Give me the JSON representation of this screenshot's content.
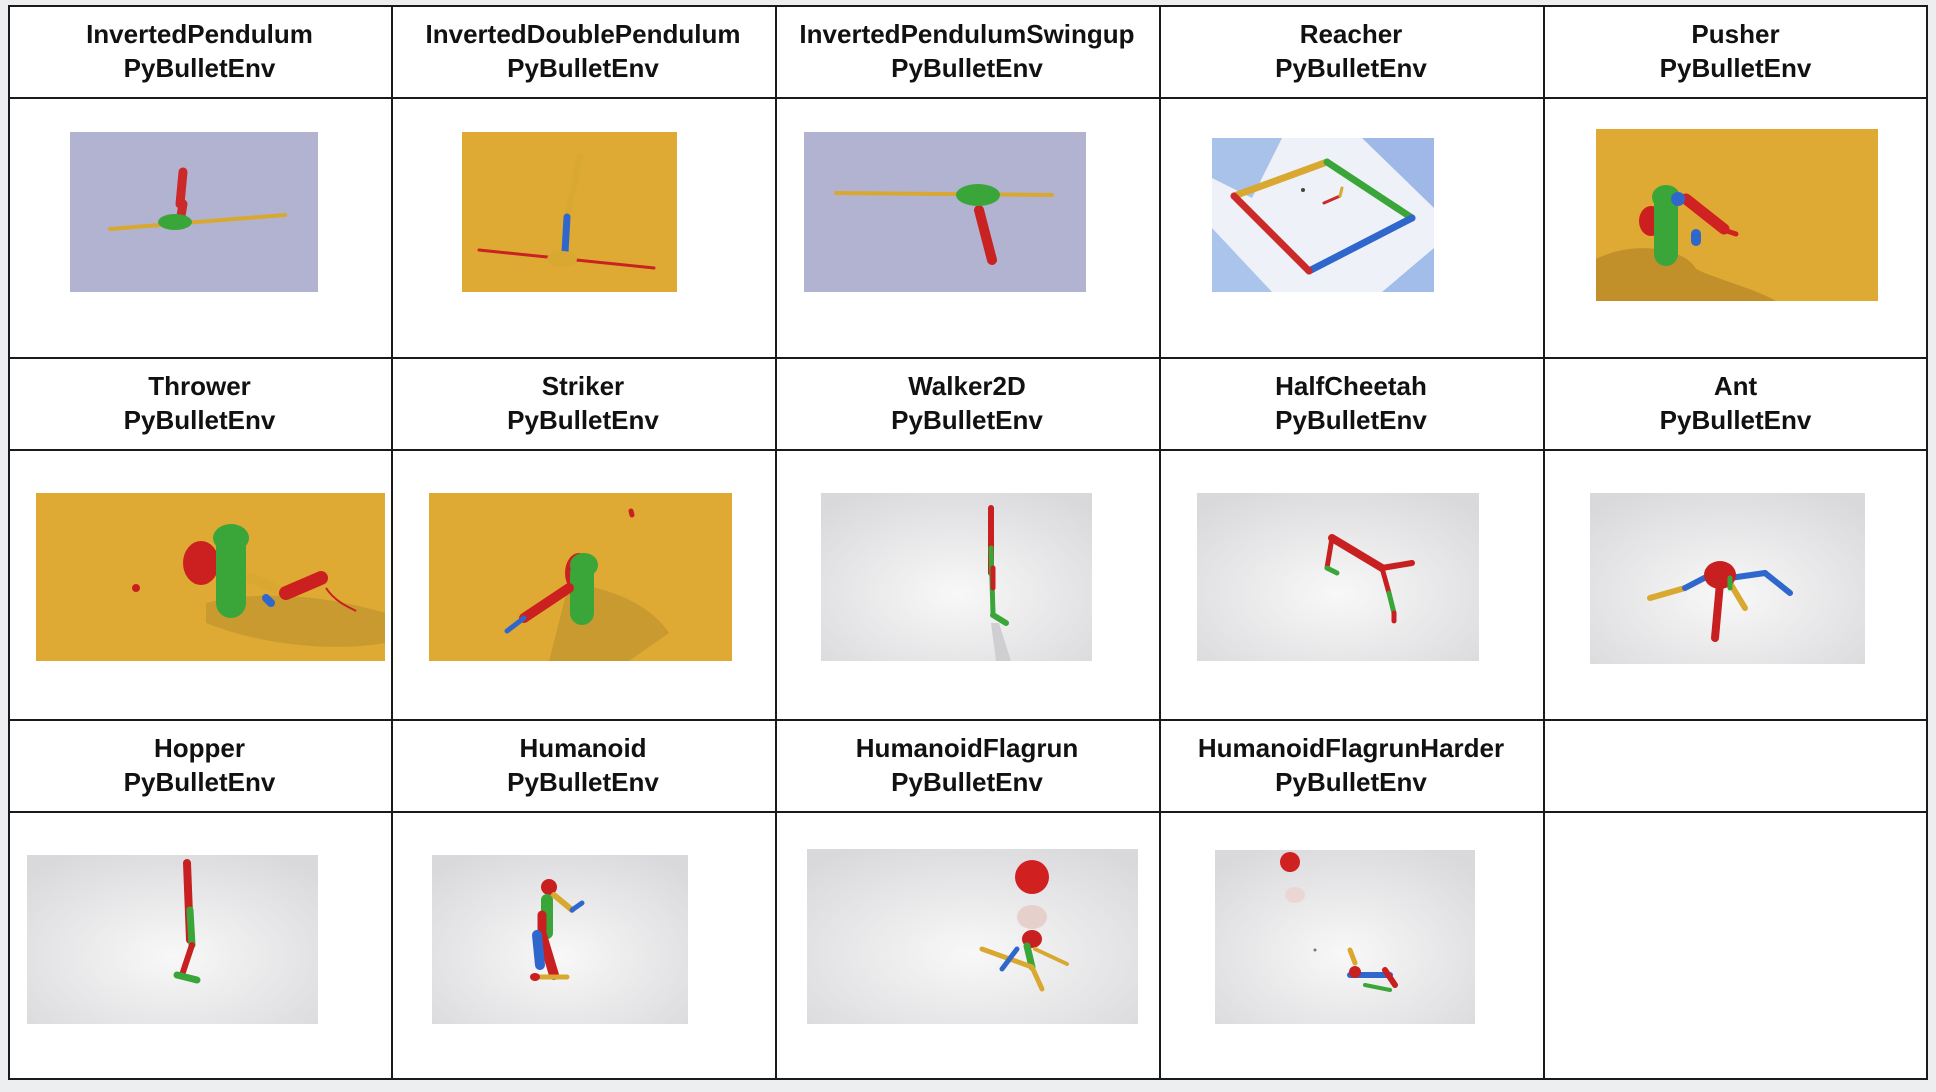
{
  "table": {
    "rows": [
      [
        {
          "name": "InvertedPendulum",
          "env": "PyBulletEnv",
          "scene": "inverted-pendulum"
        },
        {
          "name": "InvertedDoublePendulum",
          "env": "PyBulletEnv",
          "scene": "inverted-double-pendulum"
        },
        {
          "name": "InvertedPendulumSwingup",
          "env": "PyBulletEnv",
          "scene": "inverted-pendulum-swingup"
        },
        {
          "name": "Reacher",
          "env": "PyBulletEnv",
          "scene": "reacher"
        },
        {
          "name": "Pusher",
          "env": "PyBulletEnv",
          "scene": "pusher"
        }
      ],
      [
        {
          "name": "Thrower",
          "env": "PyBulletEnv",
          "scene": "thrower"
        },
        {
          "name": "Striker",
          "env": "PyBulletEnv",
          "scene": "striker"
        },
        {
          "name": "Walker2D",
          "env": "PyBulletEnv",
          "scene": "walker2d"
        },
        {
          "name": "HalfCheetah",
          "env": "PyBulletEnv",
          "scene": "halfcheetah"
        },
        {
          "name": "Ant",
          "env": "PyBulletEnv",
          "scene": "ant"
        }
      ],
      [
        {
          "name": "Hopper",
          "env": "PyBulletEnv",
          "scene": "hopper"
        },
        {
          "name": "Humanoid",
          "env": "PyBulletEnv",
          "scene": "humanoid"
        },
        {
          "name": "HumanoidFlagrun",
          "env": "PyBulletEnv",
          "scene": "humanoid-flagrun"
        },
        {
          "name": "HumanoidFlagrunHarder",
          "env": "PyBulletEnv",
          "scene": "humanoid-flagrun-harder"
        },
        {
          "name": "",
          "env": "",
          "scene": ""
        }
      ]
    ]
  },
  "colors": {
    "purple_bg": "#b2b3d0",
    "gold_bg": "#deaa33",
    "red": "#cc2a2a",
    "green": "#3aa63a",
    "blue": "#2f67cc",
    "yellow": "#d8a830"
  }
}
